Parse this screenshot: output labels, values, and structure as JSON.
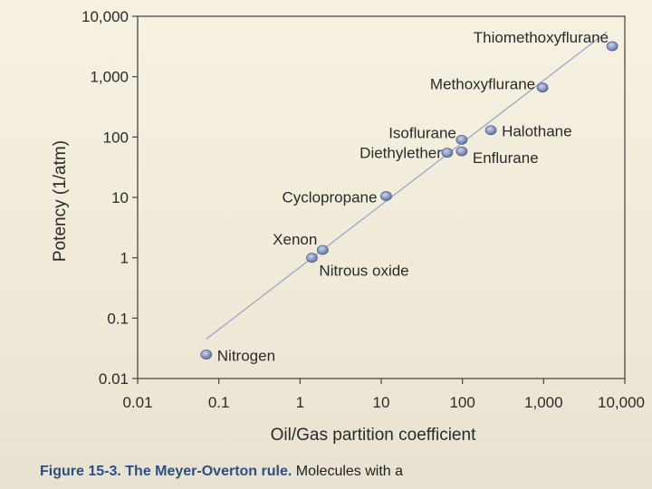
{
  "chart_data": {
    "type": "scatter",
    "xscale": "log",
    "yscale": "log",
    "xlim": [
      0.01,
      10000
    ],
    "ylim": [
      0.01,
      10000
    ],
    "xlabel": "Oil/Gas partition coefficient",
    "ylabel": "Potency (1/atm)",
    "x_ticks": [
      0.01,
      0.1,
      1,
      10,
      100,
      1000,
      10000
    ],
    "x_tick_labels": [
      "0.01",
      "0.1",
      "1",
      "10",
      "100",
      "1,000",
      "10,000"
    ],
    "y_ticks": [
      0.01,
      0.1,
      1,
      10,
      100,
      1000,
      10000
    ],
    "y_tick_labels": [
      "0.01",
      "0.1",
      "1",
      "10",
      "100",
      "1,000",
      "10,000"
    ],
    "points": [
      {
        "name": "Nitrogen",
        "x": 0.07,
        "y": 0.025
      },
      {
        "name": "Nitrous oxide",
        "x": 1.4,
        "y": 1.0
      },
      {
        "name": "Xenon",
        "x": 1.9,
        "y": 1.35
      },
      {
        "name": "Cyclopropane",
        "x": 11.5,
        "y": 10.5
      },
      {
        "name": "Diethylether",
        "x": 65,
        "y": 55
      },
      {
        "name": "Enflurane",
        "x": 98,
        "y": 58
      },
      {
        "name": "Isoflurane",
        "x": 98,
        "y": 90
      },
      {
        "name": "Halothane",
        "x": 224,
        "y": 130
      },
      {
        "name": "Methoxyflurane",
        "x": 970,
        "y": 660
      },
      {
        "name": "Thiomethoxyflurane",
        "x": 7000,
        "y": 3200
      }
    ],
    "fit_line": {
      "x": [
        0.07,
        6000
      ],
      "y": [
        0.045,
        5500
      ]
    }
  },
  "caption": {
    "figure": "Figure 15-3.",
    "title": "The Meyer-Overton rule.",
    "rest": "Molecules with a"
  }
}
